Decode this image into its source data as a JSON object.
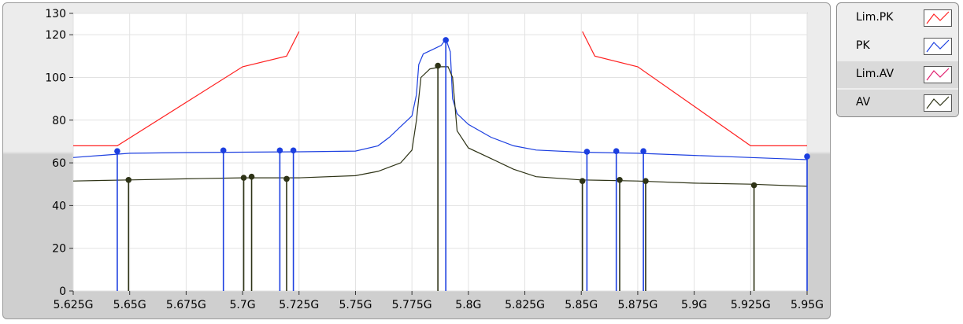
{
  "chart_data": {
    "type": "line",
    "xlim": [
      5.625,
      5.95
    ],
    "ylim": [
      0,
      130
    ],
    "x_ticks": [
      5.625,
      5.65,
      5.675,
      5.7,
      5.725,
      5.75,
      5.775,
      5.8,
      5.825,
      5.85,
      5.875,
      5.9,
      5.925,
      5.95
    ],
    "x_tick_labels": [
      "5.625G",
      "5.65G",
      "5.675G",
      "5.7G",
      "5.725G",
      "5.75G",
      "5.775G",
      "5.8G",
      "5.825G",
      "5.85G",
      "5.875G",
      "5.9G",
      "5.925G",
      "5.95G"
    ],
    "y_ticks": [
      0,
      20,
      40,
      60,
      80,
      100,
      120,
      130
    ],
    "y_tick_labels": [
      "0",
      "20",
      "40",
      "60",
      "80",
      "100",
      "120",
      "130"
    ],
    "grid": true,
    "legend_position": "right",
    "series": [
      {
        "name": "Lim.PK",
        "color": "#ff2020",
        "style": "line",
        "segments": [
          [
            [
              5.625,
              68
            ],
            [
              5.6445,
              68
            ],
            [
              5.7,
              105
            ],
            [
              5.7195,
              110
            ],
            [
              5.725,
              121.5
            ]
          ],
          [
            [
              5.8505,
              121.5
            ],
            [
              5.856,
              110
            ],
            [
              5.875,
              105
            ],
            [
              5.925,
              68
            ],
            [
              5.95,
              68
            ]
          ]
        ]
      },
      {
        "name": "PK",
        "color": "#1c3fe0",
        "style": "line",
        "points": [
          [
            5.625,
            62.5
          ],
          [
            5.65,
            64.5
          ],
          [
            5.675,
            64.8
          ],
          [
            5.7,
            65
          ],
          [
            5.725,
            65.2
          ],
          [
            5.75,
            65.5
          ],
          [
            5.76,
            68
          ],
          [
            5.765,
            72
          ],
          [
            5.77,
            77
          ],
          [
            5.775,
            82
          ],
          [
            5.777,
            92
          ],
          [
            5.778,
            106
          ],
          [
            5.78,
            111
          ],
          [
            5.784,
            113
          ],
          [
            5.788,
            115
          ],
          [
            5.79,
            118
          ],
          [
            5.792,
            112
          ],
          [
            5.793,
            90
          ],
          [
            5.795,
            83
          ],
          [
            5.8,
            78
          ],
          [
            5.81,
            72
          ],
          [
            5.82,
            68
          ],
          [
            5.83,
            66
          ],
          [
            5.85,
            65
          ],
          [
            5.875,
            64.5
          ],
          [
            5.9,
            63.5
          ],
          [
            5.925,
            62.5
          ],
          [
            5.95,
            61.5
          ]
        ]
      },
      {
        "name": "Lim.AV",
        "color": "#e01e6e",
        "style": "line",
        "points": []
      },
      {
        "name": "AV",
        "color": "#2e3316",
        "style": "line",
        "points": [
          [
            5.625,
            51.5
          ],
          [
            5.65,
            52
          ],
          [
            5.675,
            52.5
          ],
          [
            5.7,
            53
          ],
          [
            5.725,
            53
          ],
          [
            5.75,
            54
          ],
          [
            5.76,
            56
          ],
          [
            5.77,
            60
          ],
          [
            5.775,
            66
          ],
          [
            5.777,
            80
          ],
          [
            5.779,
            100
          ],
          [
            5.783,
            104
          ],
          [
            5.788,
            105
          ],
          [
            5.791,
            105
          ],
          [
            5.793,
            100
          ],
          [
            5.795,
            75
          ],
          [
            5.8,
            67
          ],
          [
            5.81,
            62
          ],
          [
            5.82,
            57
          ],
          [
            5.83,
            53.5
          ],
          [
            5.85,
            52
          ],
          [
            5.875,
            51.5
          ],
          [
            5.9,
            50.5
          ],
          [
            5.925,
            50
          ],
          [
            5.95,
            49
          ]
        ]
      }
    ],
    "markers": [
      {
        "series": "PK",
        "points": [
          [
            5.6445,
            65.5
          ],
          [
            5.6915,
            65.8
          ],
          [
            5.7165,
            65.8
          ],
          [
            5.7225,
            65.8
          ],
          [
            5.79,
            117.5
          ],
          [
            5.8525,
            65.2
          ],
          [
            5.8655,
            65.5
          ],
          [
            5.8775,
            65.5
          ],
          [
            5.95,
            63
          ]
        ]
      },
      {
        "series": "AV",
        "points": [
          [
            5.6495,
            52
          ],
          [
            5.7005,
            53
          ],
          [
            5.704,
            53.5
          ],
          [
            5.7195,
            52.5
          ],
          [
            5.7865,
            105.5
          ],
          [
            5.8505,
            51.5
          ],
          [
            5.867,
            52
          ],
          [
            5.8785,
            51.5
          ],
          [
            5.9265,
            49.5
          ]
        ]
      }
    ]
  },
  "legend": {
    "items": [
      {
        "label": "Lim.PK",
        "color": "#ff2020"
      },
      {
        "label": "PK",
        "color": "#1c3fe0"
      },
      {
        "label": "Lim.AV",
        "color": "#e01e6e"
      },
      {
        "label": "AV",
        "color": "#2e3316"
      }
    ]
  }
}
